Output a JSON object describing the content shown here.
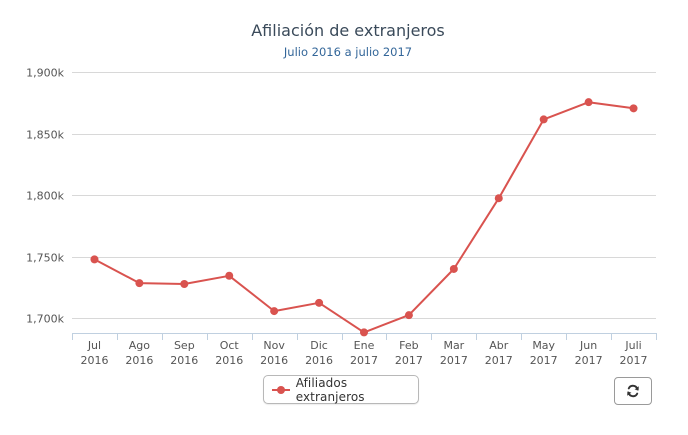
{
  "chart_data": {
    "type": "line",
    "title": "Afiliación de extranjeros",
    "subtitle": "Julio 2016 a julio 2017",
    "xlabel": "",
    "ylabel": "",
    "categories": [
      [
        "Jul",
        "2016"
      ],
      [
        "Ago",
        "2016"
      ],
      [
        "Sep",
        "2016"
      ],
      [
        "Oct",
        "2016"
      ],
      [
        "Nov",
        "2016"
      ],
      [
        "Dic",
        "2016"
      ],
      [
        "Ene",
        "2017"
      ],
      [
        "Feb",
        "2017"
      ],
      [
        "Mar",
        "2017"
      ],
      [
        "Abr",
        "2017"
      ],
      [
        "May",
        "2017"
      ],
      [
        "Jun",
        "2017"
      ],
      [
        "Juli",
        "2017"
      ]
    ],
    "series": [
      {
        "name": "Afiliados extranjeros",
        "color": "#d9534f",
        "values": [
          1747800,
          1728500,
          1727800,
          1734500,
          1705800,
          1712500,
          1688500,
          1702500,
          1740000,
          1797500,
          1861500,
          1875500,
          1870500
        ]
      }
    ],
    "ylim": [
      1688000,
      1900000
    ],
    "yticks": [
      1700000,
      1750000,
      1800000,
      1850000,
      1900000
    ],
    "ytick_labels": [
      "1,700k",
      "1,750k",
      "1,800k",
      "1,850k",
      "1,900k"
    ],
    "grid": true,
    "legend_position": "bottom-center"
  },
  "colors": {
    "title": "#3a4a5a",
    "subtitle": "#336699",
    "grid": "#d8d8d8",
    "axis_line": "#c0d0e0",
    "tick_text": "#555555"
  },
  "controls": {
    "refresh_icon": "refresh-icon"
  }
}
